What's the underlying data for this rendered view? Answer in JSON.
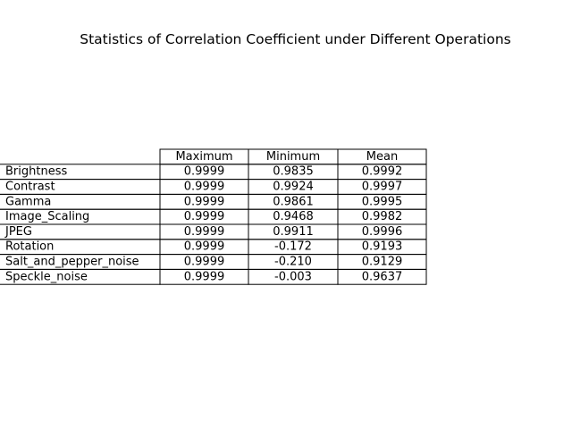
{
  "chart_data": {
    "type": "table",
    "title": "Statistics of Correlation Coefficient under Different Operations",
    "columns": [
      "Maximum",
      "Minimum",
      "Mean"
    ],
    "rows": [
      {
        "label": "Brightness",
        "values": [
          "0.9999",
          "0.9835",
          "0.9992"
        ]
      },
      {
        "label": "Contrast",
        "values": [
          "0.9999",
          "0.9924",
          "0.9997"
        ]
      },
      {
        "label": "Gamma",
        "values": [
          "0.9999",
          "0.9861",
          "0.9995"
        ]
      },
      {
        "label": "Image_Scaling",
        "values": [
          "0.9999",
          "0.9468",
          "0.9982"
        ]
      },
      {
        "label": "JPEG",
        "values": [
          "0.9999",
          "0.9911",
          "0.9996"
        ]
      },
      {
        "label": "Rotation",
        "values": [
          "0.9999",
          "-0.172",
          "0.9193"
        ]
      },
      {
        "label": "Salt_and_pepper_noise",
        "values": [
          "0.9999",
          "-0.210",
          "0.9129"
        ]
      },
      {
        "label": "Speckle_noise",
        "values": [
          "0.9999",
          "-0.003",
          "0.9637"
        ]
      }
    ]
  }
}
